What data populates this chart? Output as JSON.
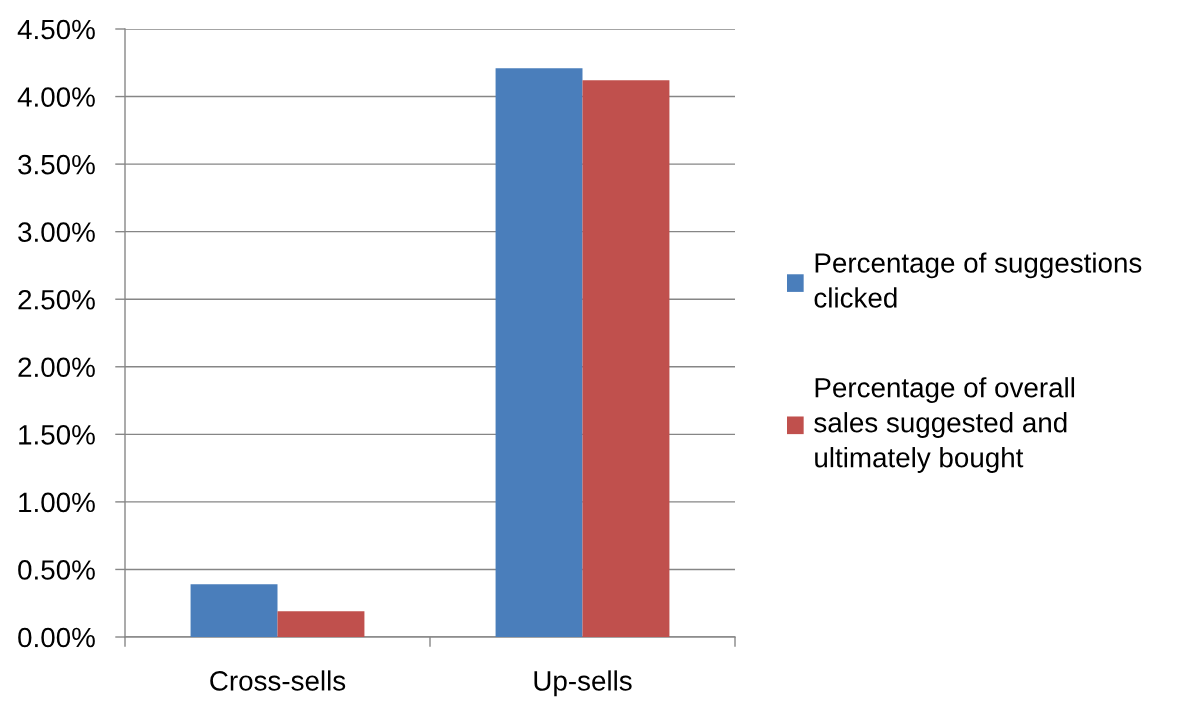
{
  "chart_data": {
    "type": "bar",
    "categories": [
      "Cross-sells",
      "Up-sells"
    ],
    "series": [
      {
        "name": "Percentage of suggestions\nclicked",
        "color": "#4a7ebb",
        "values": [
          0.39,
          4.21
        ]
      },
      {
        "name": "Percentage of overall\nsales suggested and\nultimately bought",
        "color": "#c0504d",
        "values": [
          0.19,
          4.12
        ]
      }
    ],
    "ylim": [
      0,
      4.5
    ],
    "yticks": [
      {
        "value": 0,
        "label": "0.00%"
      },
      {
        "value": 0.5,
        "label": "0.50%"
      },
      {
        "value": 1,
        "label": "1.00%"
      },
      {
        "value": 1.5,
        "label": "1.50%"
      },
      {
        "value": 2,
        "label": "2.00%"
      },
      {
        "value": 2.5,
        "label": "2.50%"
      },
      {
        "value": 3,
        "label": "3.00%"
      },
      {
        "value": 3.5,
        "label": "3.50%"
      },
      {
        "value": 4,
        "label": "4.00%"
      },
      {
        "value": 4.5,
        "label": "4.50%"
      }
    ],
    "grid": "y",
    "legend": "right"
  }
}
